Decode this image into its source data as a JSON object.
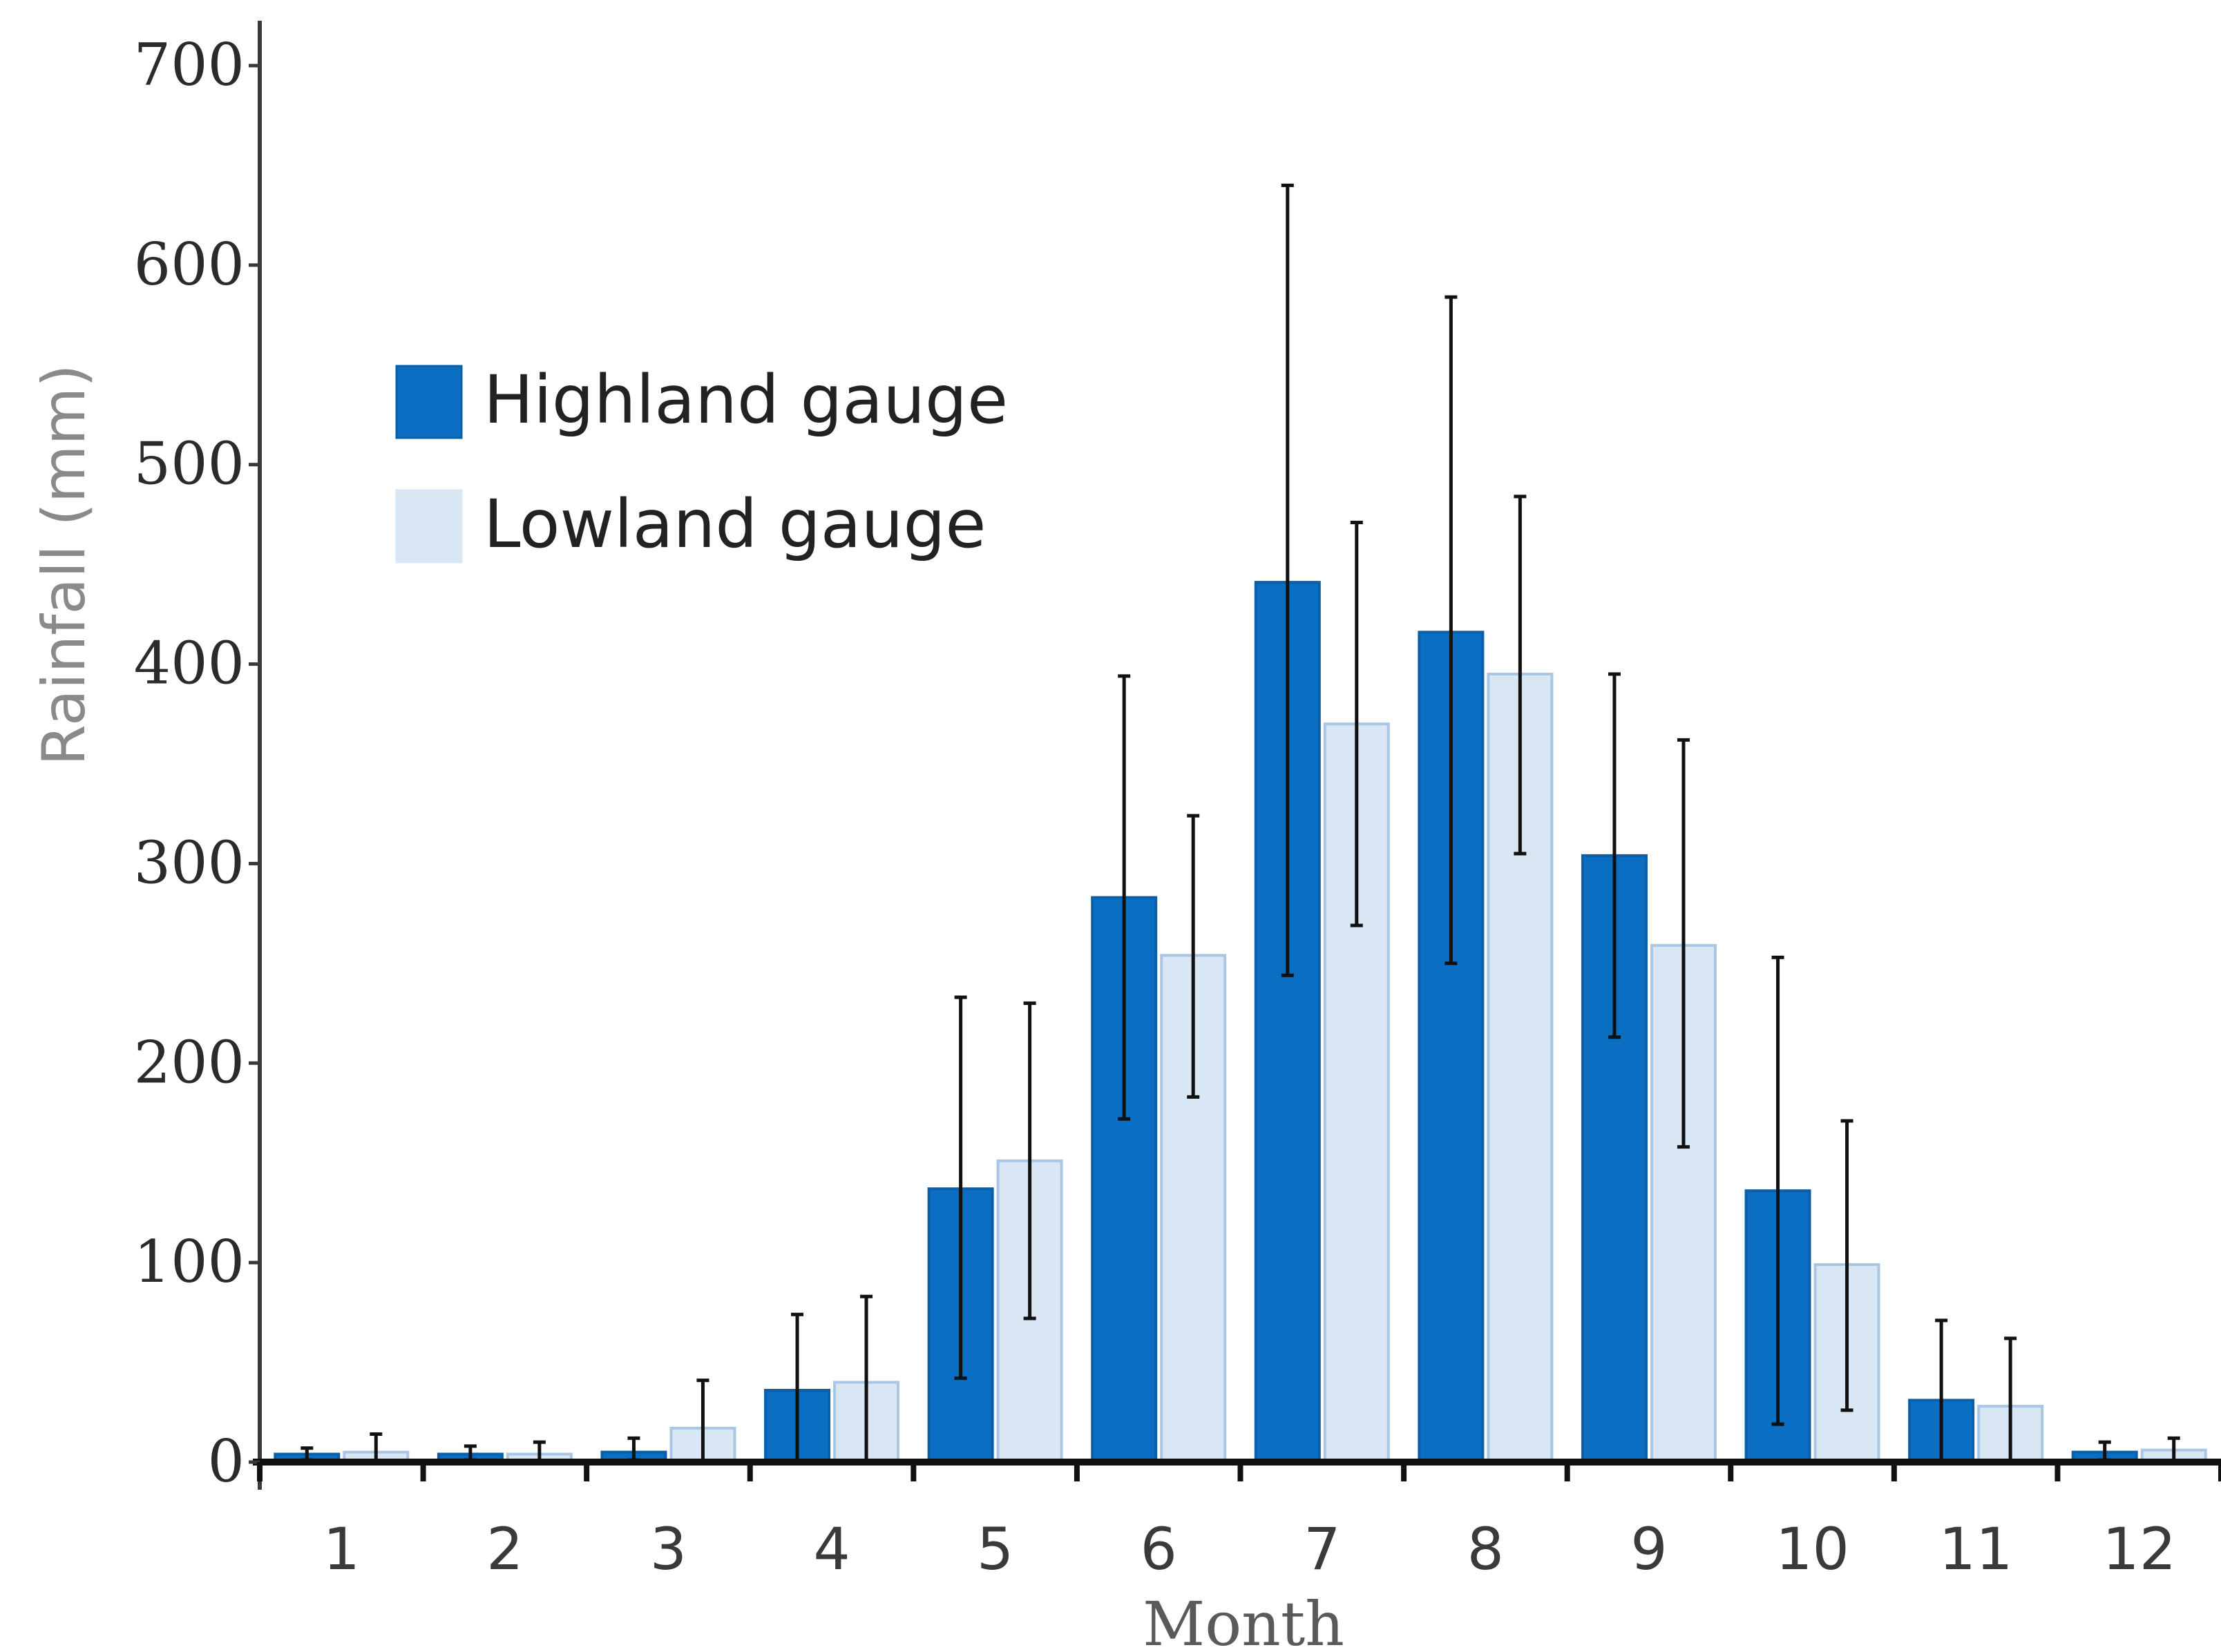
{
  "chart_data": {
    "type": "bar",
    "xlabel": "Month",
    "ylabel": "Rainfall (mm)",
    "ylim": [
      0,
      700
    ],
    "yticks": [
      0,
      100,
      200,
      300,
      400,
      500,
      600,
      700
    ],
    "categories": [
      "1",
      "2",
      "3",
      "4",
      "5",
      "6",
      "7",
      "8",
      "9",
      "10",
      "11",
      "12"
    ],
    "grid": false,
    "legend_position": "top-left",
    "series": [
      {
        "name": "Highland gauge",
        "color": "#0a6fc2",
        "values": [
          4,
          4,
          5,
          36,
          137,
          283,
          441,
          416,
          304,
          136,
          31,
          5
        ],
        "error_low": [
          1,
          1,
          1,
          0,
          42,
          172,
          244,
          250,
          213,
          19,
          0,
          1
        ],
        "error_high": [
          7,
          8,
          12,
          74,
          233,
          394,
          640,
          584,
          395,
          253,
          71,
          10
        ]
      },
      {
        "name": "Lowland gauge",
        "color": "#d9e6f3",
        "values": [
          5,
          4,
          17,
          40,
          151,
          254,
          370,
          395,
          259,
          99,
          28,
          6
        ],
        "error_low": [
          0,
          0,
          0,
          0,
          72,
          183,
          269,
          305,
          158,
          26,
          0,
          0
        ],
        "error_high": [
          14,
          10,
          41,
          83,
          230,
          324,
          471,
          484,
          362,
          171,
          62,
          12
        ]
      }
    ]
  }
}
